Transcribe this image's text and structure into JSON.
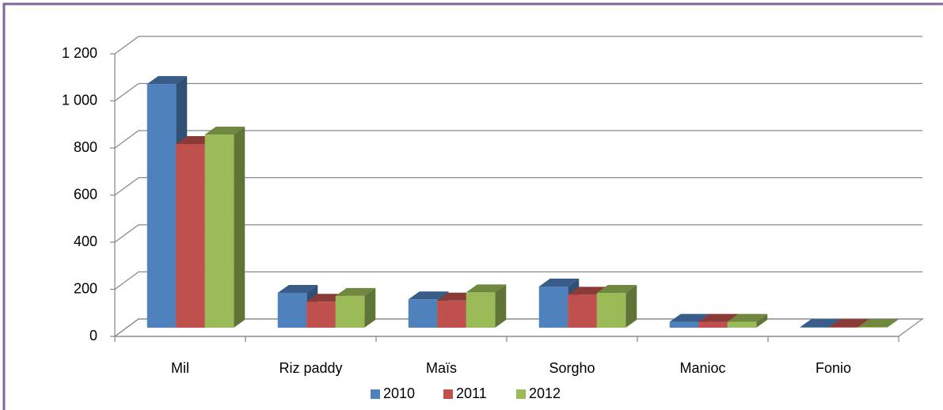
{
  "chart_data": {
    "type": "bar3d",
    "categories": [
      "Mil",
      "Riz paddy",
      "Maïs",
      "Sorgho",
      "Manioc",
      "Fonio"
    ],
    "series": [
      {
        "name": "2010",
        "color": "#4f81bd",
        "values": [
          1035,
          148,
          120,
          175,
          25,
          3
        ]
      },
      {
        "name": "2011",
        "color": "#c0504d",
        "values": [
          780,
          110,
          115,
          140,
          25,
          3
        ]
      },
      {
        "name": "2012",
        "color": "#9bbb59",
        "values": [
          820,
          135,
          150,
          148,
          25,
          3
        ]
      }
    ],
    "ylim": [
      0,
      1200
    ],
    "yticks": [
      0,
      200,
      400,
      600,
      800,
      {
        "value": 1000,
        "label": "1 000"
      },
      {
        "value": 1200,
        "label": "1 200"
      }
    ],
    "grid": true,
    "legend": "bottom"
  }
}
